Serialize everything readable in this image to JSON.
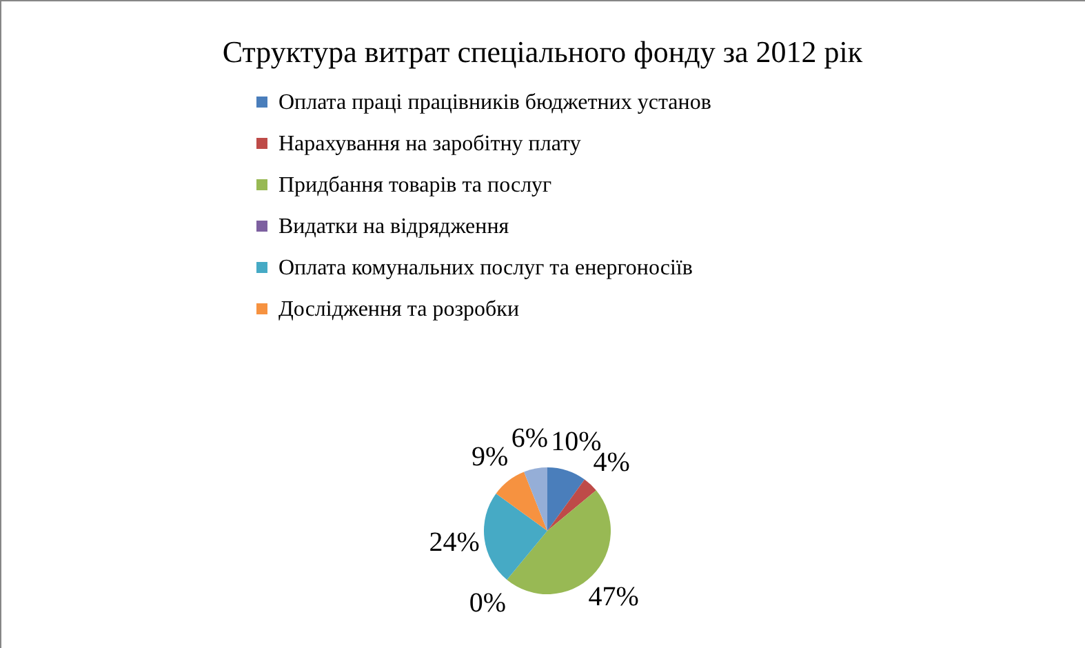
{
  "chart_data": {
    "type": "pie",
    "title": "Структура витрат спеціального фонду за 2012 рік",
    "categories": [
      "Оплата праці працівників бюджетних установ",
      "Нарахування на заробітну плату",
      "Придбання товарів та послуг",
      "Видатки на відрядження",
      "Оплата комунальних послуг та енергоносіїв",
      "Дослідження та розробки",
      null
    ],
    "values": [
      10,
      4,
      47,
      0,
      24,
      9,
      6
    ],
    "value_labels": [
      "10%",
      "4%",
      "47%",
      "0%",
      "24%",
      "9%",
      "6%"
    ],
    "colors": [
      "#4a7ebb",
      "#be4b48",
      "#98b954",
      "#7d60a0",
      "#46aac5",
      "#f69240",
      "#95aed7"
    ],
    "legend": "top"
  }
}
